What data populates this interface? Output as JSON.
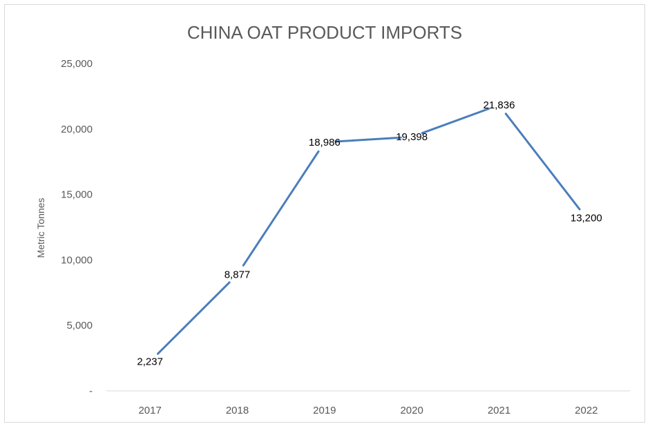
{
  "chart_data": {
    "type": "line",
    "title": "CHINA OAT PRODUCT IMPORTS",
    "xlabel": "",
    "ylabel": "Metric Tonnes",
    "categories": [
      "2017",
      "2018",
      "2019",
      "2020",
      "2021",
      "2022"
    ],
    "series": [
      {
        "values": [
          2237,
          8877,
          18986,
          19398,
          21836,
          13200
        ],
        "value_labels": [
          "2,237",
          "8,877",
          "18,986",
          "19,398",
          "21,836",
          "13,200"
        ],
        "color": "#4a7ebb"
      }
    ],
    "y_ticks": [
      {
        "value": 0,
        "label": "-"
      },
      {
        "value": 5000,
        "label": "5,000"
      },
      {
        "value": 10000,
        "label": "10,000"
      },
      {
        "value": 15000,
        "label": "15,000"
      },
      {
        "value": 20000,
        "label": "20,000"
      },
      {
        "value": 25000,
        "label": "25,000"
      }
    ],
    "ylim": [
      0,
      25000
    ],
    "grid": false,
    "legend": "none"
  }
}
